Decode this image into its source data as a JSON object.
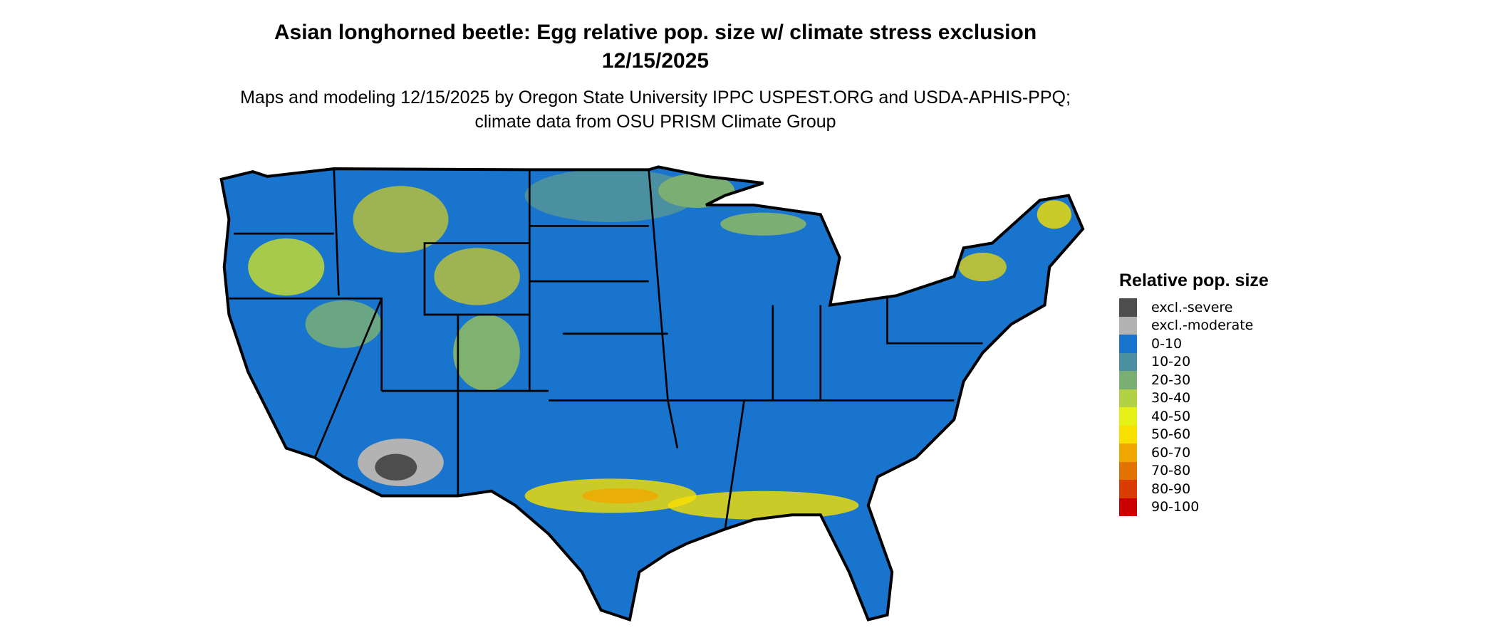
{
  "title": "Asian longhorned beetle: Egg relative pop. size w/ climate stress exclusion 12/15/2025",
  "subtitle": "Maps and modeling 12/15/2025 by Oregon State University IPPC USPEST.ORG and USDA-APHIS-PPQ; climate data from OSU PRISM Climate Group",
  "legend": {
    "title": "Relative pop. size",
    "items": [
      {
        "label": "excl.-severe",
        "color": "#4d4d4d"
      },
      {
        "label": "excl.-moderate",
        "color": "#b3b3b3"
      },
      {
        "label": "0-10",
        "color": "#1874cd"
      },
      {
        "label": "10-20",
        "color": "#4a90a0"
      },
      {
        "label": "20-30",
        "color": "#7bae72"
      },
      {
        "label": "30-40",
        "color": "#b2d145"
      },
      {
        "label": "40-50",
        "color": "#e5f016"
      },
      {
        "label": "50-60",
        "color": "#f8e000"
      },
      {
        "label": "60-70",
        "color": "#f0a800"
      },
      {
        "label": "70-80",
        "color": "#e27300"
      },
      {
        "label": "80-90",
        "color": "#db3c00"
      },
      {
        "label": "90-100",
        "color": "#cc0000"
      }
    ]
  }
}
